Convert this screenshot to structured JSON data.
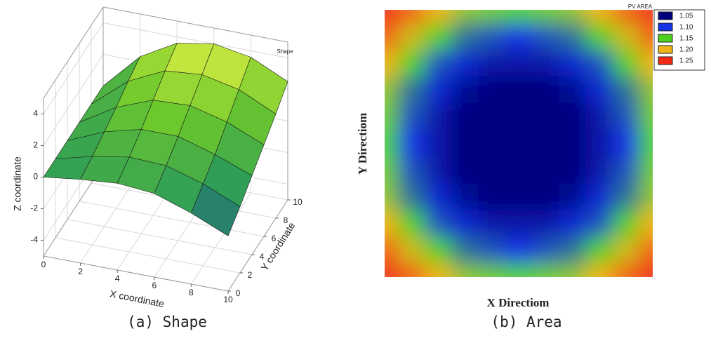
{
  "chart_data": [
    {
      "type": "surface",
      "title": "Shape",
      "caption": "(a) Shape",
      "x_label": "X coordinate",
      "y_label": "Y coordinate",
      "z_label": "Z coordinate",
      "x": [
        0,
        2,
        4,
        6,
        8,
        10
      ],
      "y": [
        0,
        2,
        4,
        6,
        8,
        10
      ],
      "z": [
        [
          0,
          0.3,
          0.5,
          0.3,
          -0.5,
          -1.5
        ],
        [
          0,
          0.6,
          1.0,
          0.9,
          0.2,
          -0.8
        ],
        [
          0,
          1.0,
          1.6,
          1.6,
          0.9,
          0.0
        ],
        [
          0,
          1.4,
          2.3,
          2.4,
          1.8,
          0.8
        ],
        [
          0,
          1.9,
          3.0,
          3.2,
          2.7,
          1.6
        ],
        [
          0,
          2.3,
          3.6,
          4.0,
          3.6,
          2.5
        ]
      ],
      "xlim": [
        0,
        10
      ],
      "ylim": [
        0,
        10
      ],
      "zlim": [
        -5,
        5
      ],
      "xticks": [
        0,
        2,
        4,
        6,
        8,
        10
      ],
      "yticks": [
        0,
        2,
        4,
        6,
        8,
        10
      ],
      "zticks": [
        -4,
        -2,
        0,
        2,
        4
      ],
      "colormap": [
        "#1f3c9c",
        "#2a9a5a",
        "#6cc82c",
        "#e4f244"
      ],
      "grid": true
    },
    {
      "type": "contour",
      "title": "PV AREA",
      "caption": "(b) Area",
      "x_label": "X Directiom",
      "y_label": "Y Directiom",
      "z": [
        [
          1.28,
          1.23,
          1.2,
          1.17,
          1.16,
          1.15,
          1.16,
          1.17,
          1.2,
          1.23,
          1.28
        ],
        [
          1.23,
          1.19,
          1.15,
          1.12,
          1.11,
          1.1,
          1.11,
          1.12,
          1.15,
          1.19,
          1.23
        ],
        [
          1.2,
          1.15,
          1.11,
          1.09,
          1.07,
          1.07,
          1.07,
          1.09,
          1.11,
          1.15,
          1.2
        ],
        [
          1.17,
          1.12,
          1.09,
          1.06,
          1.05,
          1.04,
          1.05,
          1.06,
          1.09,
          1.12,
          1.17
        ],
        [
          1.16,
          1.11,
          1.07,
          1.05,
          1.03,
          1.03,
          1.03,
          1.05,
          1.07,
          1.11,
          1.16
        ],
        [
          1.15,
          1.1,
          1.07,
          1.04,
          1.03,
          1.02,
          1.03,
          1.04,
          1.07,
          1.1,
          1.15
        ],
        [
          1.16,
          1.11,
          1.07,
          1.05,
          1.03,
          1.03,
          1.03,
          1.05,
          1.07,
          1.11,
          1.16
        ],
        [
          1.17,
          1.12,
          1.09,
          1.06,
          1.05,
          1.04,
          1.05,
          1.06,
          1.09,
          1.12,
          1.17
        ],
        [
          1.2,
          1.15,
          1.11,
          1.09,
          1.07,
          1.07,
          1.07,
          1.09,
          1.11,
          1.15,
          1.2
        ],
        [
          1.23,
          1.19,
          1.15,
          1.12,
          1.11,
          1.1,
          1.11,
          1.12,
          1.15,
          1.19,
          1.23
        ],
        [
          1.28,
          1.23,
          1.2,
          1.17,
          1.16,
          1.15,
          1.16,
          1.17,
          1.2,
          1.23,
          1.28
        ]
      ],
      "levels": [
        1.05,
        {
          "value": 1.1,
          "label": "1.10"
        },
        1.15,
        {
          "value": 1.2,
          "label": "1.20"
        },
        1.25
      ],
      "colors": [
        "#00007f",
        "#1432e6",
        "#4cd21e",
        "#f0b419",
        "#f02814"
      ],
      "legend": "upper right"
    }
  ]
}
